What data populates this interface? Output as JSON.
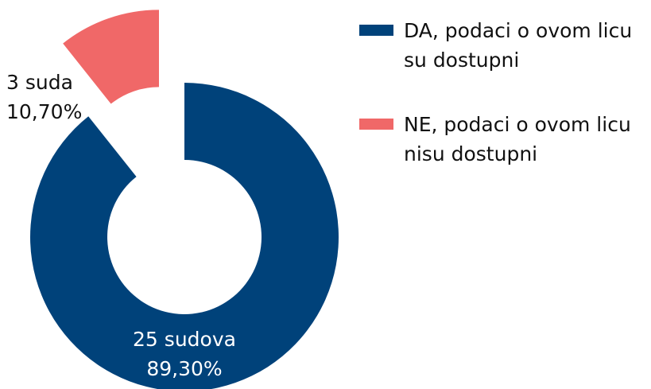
{
  "chart_data": {
    "type": "donut",
    "categories": [
      "DA, podaci o ovom licu su dostupni",
      "NE, podaci o ovom licu nisu dostupni"
    ],
    "values": [
      89.3,
      10.7
    ],
    "value_labels": [
      "89,30%",
      "10,70%"
    ],
    "slice_labels": [
      "25 sudova",
      "3 suda"
    ],
    "colors": [
      "#00427a",
      "#f06868"
    ],
    "explode": [
      false,
      true
    ],
    "legend": "right"
  }
}
